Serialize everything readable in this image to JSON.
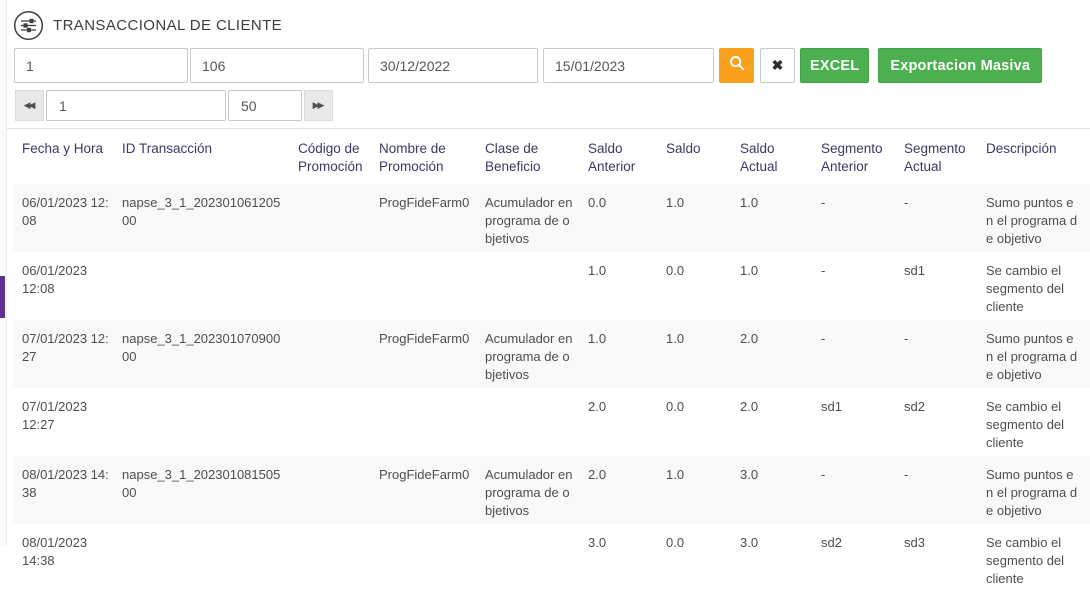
{
  "title": "TRANSACCIONAL DE CLIENTE",
  "filters": {
    "client_id": "1",
    "program_id": "106",
    "date_from": "30/12/2022",
    "date_to": "15/01/2023",
    "excel_button": "EXCEL",
    "export_button": "Exportacion Masiva"
  },
  "pagination": {
    "page": "1",
    "page_size": "50"
  },
  "icons": {
    "title": "sliders",
    "search": "magnifier",
    "clear": "✖",
    "prev": "◀◀",
    "next": "▶▶"
  },
  "colors": {
    "orange": "#f9a11d",
    "green": "#4caf50",
    "purple": "#5c3193"
  },
  "table": {
    "columns": [
      "Fecha y Hora",
      "ID Transacción",
      "Código de Promoción",
      "Nombre de Promoción",
      "Clase de Beneficio",
      "Saldo Anterior",
      "Saldo",
      "Saldo Actual",
      "Segmento Anterior",
      "Segmento Actual",
      "Descripción"
    ],
    "rows": [
      {
        "cells": [
          "06/01/2023 12:08",
          "napse_3_1_20230106120500",
          "",
          "ProgFideFarm0",
          "Acumulador en programa de objetivos",
          "0.0",
          "1.0",
          "1.0",
          "-",
          "-",
          "Sumo puntos en el programa de objetivo"
        ]
      },
      {
        "cells": [
          "06/01/2023 12:08",
          "",
          "",
          "",
          "",
          "1.0",
          "0.0",
          "1.0",
          "-",
          "sd1",
          "Se cambio el segmento del cliente"
        ]
      },
      {
        "cells": [
          "07/01/2023 12:27",
          "napse_3_1_20230107090000",
          "",
          "ProgFideFarm0",
          "Acumulador en programa de objetivos",
          "1.0",
          "1.0",
          "2.0",
          "-",
          "-",
          "Sumo puntos en el programa de objetivo"
        ]
      },
      {
        "cells": [
          "07/01/2023 12:27",
          "",
          "",
          "",
          "",
          "2.0",
          "0.0",
          "2.0",
          "sd1",
          "sd2",
          "Se cambio el segmento del cliente"
        ]
      },
      {
        "cells": [
          "08/01/2023 14:38",
          "napse_3_1_20230108150500",
          "",
          "ProgFideFarm0",
          "Acumulador en programa de objetivos",
          "2.0",
          "1.0",
          "3.0",
          "-",
          "-",
          "Sumo puntos en el programa de objetivo"
        ]
      },
      {
        "cells": [
          "08/01/2023 14:38",
          "",
          "",
          "",
          "",
          "3.0",
          "0.0",
          "3.0",
          "sd2",
          "sd3",
          "Se cambio el segmento del cliente"
        ]
      }
    ]
  }
}
